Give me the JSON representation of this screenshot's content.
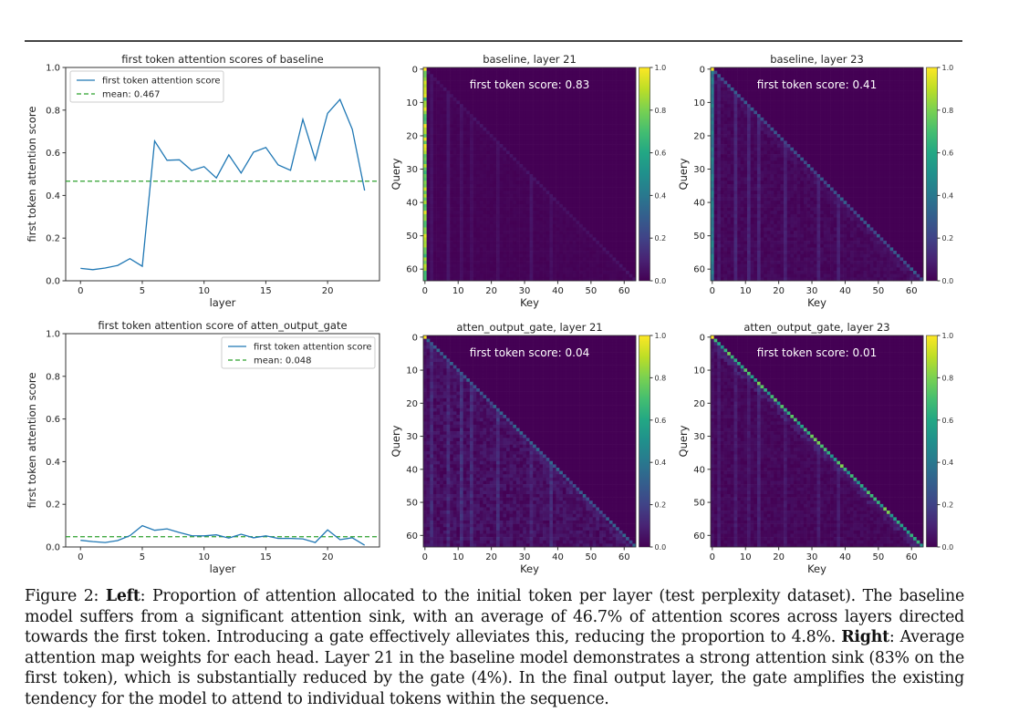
{
  "figure": {
    "caption": {
      "prefix": "Figure 2: ",
      "left_label": "Left",
      "left_text": ": Proportion of attention allocated to the initial token per layer (test perplexity dataset). The baseline model suffers from a significant attention sink, with an average of 46.7% of attention scores across layers directed towards the first token. Introducing a gate effectively alleviates this, reducing the proportion to 4.8%. ",
      "right_label": "Right",
      "right_text": ": Average attention map weights for each head. Layer 21 in the baseline model demonstrates a strong attention sink (83% on the first token), which is substantially reduced by the gate (4%). In the final output layer, the gate amplifies the existing tendency for the model to attend to individual tokens within the sequence."
    }
  },
  "colors": {
    "line": "#1f77b4",
    "mean": "#2ca02c",
    "axis": "#333333"
  },
  "chart_data": [
    {
      "id": "baseline-line",
      "type": "line",
      "title": "first token attention scores of baseline",
      "xlabel": "layer",
      "ylabel": "first token attention score",
      "xlim": [
        -1.2,
        24.2
      ],
      "ylim": [
        0,
        1.0
      ],
      "xticks": [
        0,
        5,
        10,
        15,
        20
      ],
      "yticks": [
        0.0,
        0.2,
        0.4,
        0.6,
        0.8,
        1.0
      ],
      "legend_position": "top-left",
      "series": [
        {
          "name": "first token attention score",
          "x": [
            0,
            1,
            2,
            3,
            4,
            5,
            6,
            7,
            8,
            9,
            10,
            11,
            12,
            13,
            14,
            15,
            16,
            17,
            18,
            19,
            20,
            21,
            22,
            23
          ],
          "values": [
            0.058,
            0.052,
            0.06,
            0.072,
            0.104,
            0.068,
            0.655,
            0.565,
            0.567,
            0.517,
            0.535,
            0.482,
            0.59,
            0.505,
            0.603,
            0.625,
            0.543,
            0.518,
            0.757,
            0.568,
            0.785,
            0.85,
            0.71,
            0.423
          ]
        }
      ],
      "mean": {
        "name": "mean: 0.467",
        "value": 0.467
      }
    },
    {
      "id": "gate-line",
      "type": "line",
      "title": "first token attention score of atten_output_gate",
      "xlabel": "layer",
      "ylabel": "first token attention score",
      "xlim": [
        -1.2,
        24.2
      ],
      "ylim": [
        0,
        1.0
      ],
      "xticks": [
        0,
        5,
        10,
        15,
        20
      ],
      "yticks": [
        0.0,
        0.2,
        0.4,
        0.6,
        0.8,
        1.0
      ],
      "legend_position": "top-right",
      "series": [
        {
          "name": "first token attention score",
          "x": [
            0,
            1,
            2,
            3,
            4,
            5,
            6,
            7,
            8,
            9,
            10,
            11,
            12,
            13,
            14,
            15,
            16,
            17,
            18,
            19,
            20,
            21,
            22,
            23
          ],
          "values": [
            0.031,
            0.025,
            0.021,
            0.03,
            0.053,
            0.1,
            0.078,
            0.085,
            0.068,
            0.053,
            0.052,
            0.057,
            0.042,
            0.06,
            0.043,
            0.052,
            0.04,
            0.04,
            0.038,
            0.021,
            0.08,
            0.034,
            0.043,
            0.008
          ]
        }
      ],
      "mean": {
        "name": "mean: 0.048",
        "value": 0.048
      }
    },
    {
      "id": "baseline-l21",
      "type": "heatmap",
      "title": "baseline, layer 21",
      "annotation": "first token score: 0.83",
      "xlabel": "Key",
      "ylabel": "Query",
      "size": 64,
      "first_token_score": 0.83,
      "diagonal_strength": 0.05,
      "ticks": [
        0,
        10,
        20,
        30,
        40,
        50,
        60
      ],
      "colorbar_ticks": [
        0.0,
        0.2,
        0.4,
        0.6,
        0.8,
        1.0
      ],
      "vmin": 0,
      "vmax": 1.0,
      "colormap": "viridis"
    },
    {
      "id": "baseline-l23",
      "type": "heatmap",
      "title": "baseline, layer 23",
      "annotation": "first token score: 0.41",
      "xlabel": "Key",
      "ylabel": "Query",
      "size": 64,
      "first_token_score": 0.41,
      "diagonal_strength": 0.25,
      "ticks": [
        0,
        10,
        20,
        30,
        40,
        50,
        60
      ],
      "colorbar_ticks": [
        0.0,
        0.2,
        0.4,
        0.6,
        0.8,
        1.0
      ],
      "vmin": 0,
      "vmax": 1.0,
      "colormap": "viridis"
    },
    {
      "id": "gate-l21",
      "type": "heatmap",
      "title": "atten_output_gate, layer 21",
      "annotation": "first token score: 0.04",
      "xlabel": "Key",
      "ylabel": "Query",
      "size": 64,
      "first_token_score": 0.04,
      "diagonal_strength": 0.28,
      "ticks": [
        0,
        10,
        20,
        30,
        40,
        50,
        60
      ],
      "colorbar_ticks": [
        0.0,
        0.2,
        0.4,
        0.6,
        0.8,
        1.0
      ],
      "vmin": 0,
      "vmax": 1.0,
      "colormap": "viridis"
    },
    {
      "id": "gate-l23",
      "type": "heatmap",
      "title": "atten_output_gate, layer 23",
      "annotation": "first token score: 0.01",
      "xlabel": "Key",
      "ylabel": "Query",
      "size": 64,
      "first_token_score": 0.01,
      "diagonal_strength": 0.65,
      "ticks": [
        0,
        10,
        20,
        30,
        40,
        50,
        60
      ],
      "colorbar_ticks": [
        0.0,
        0.2,
        0.4,
        0.6,
        0.8,
        1.0
      ],
      "vmin": 0,
      "vmax": 1.0,
      "colormap": "viridis"
    }
  ]
}
